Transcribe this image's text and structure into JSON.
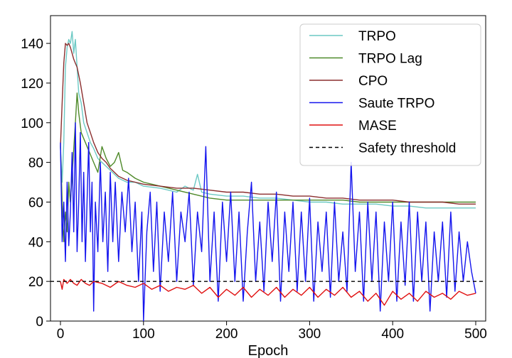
{
  "chart_data": {
    "type": "line",
    "title": "",
    "xlabel": "Epoch",
    "ylabel": "",
    "xlim": [
      -12,
      512
    ],
    "ylim": [
      0,
      154
    ],
    "xticks": [
      0,
      100,
      200,
      300,
      400,
      500
    ],
    "yticks": [
      0,
      20,
      40,
      60,
      80,
      100,
      120,
      140
    ],
    "grid": false,
    "legend_position": "top-right",
    "series": [
      {
        "name": "TRPO",
        "color": "#6cc9c4",
        "points": [
          [
            0,
            88
          ],
          [
            2,
            70
          ],
          [
            4,
            90
          ],
          [
            6,
            128
          ],
          [
            8,
            138
          ],
          [
            10,
            142
          ],
          [
            12,
            140
          ],
          [
            14,
            146
          ],
          [
            16,
            135
          ],
          [
            18,
            142
          ],
          [
            20,
            128
          ],
          [
            22,
            115
          ],
          [
            25,
            110
          ],
          [
            28,
            100
          ],
          [
            32,
            95
          ],
          [
            36,
            90
          ],
          [
            40,
            87
          ],
          [
            45,
            82
          ],
          [
            50,
            80
          ],
          [
            60,
            76
          ],
          [
            70,
            72
          ],
          [
            80,
            70
          ],
          [
            90,
            70
          ],
          [
            100,
            68
          ],
          [
            120,
            67
          ],
          [
            140,
            65
          ],
          [
            150,
            68
          ],
          [
            160,
            66
          ],
          [
            165,
            74
          ],
          [
            170,
            65
          ],
          [
            180,
            64
          ],
          [
            200,
            63
          ],
          [
            220,
            63
          ],
          [
            240,
            62
          ],
          [
            260,
            62
          ],
          [
            280,
            61
          ],
          [
            300,
            60
          ],
          [
            320,
            60
          ],
          [
            340,
            59
          ],
          [
            360,
            59
          ],
          [
            380,
            59
          ],
          [
            400,
            58
          ],
          [
            420,
            58
          ],
          [
            440,
            57
          ],
          [
            460,
            57
          ],
          [
            480,
            57
          ],
          [
            500,
            57
          ]
        ]
      },
      {
        "name": "TRPO Lag",
        "color": "#4f8a2a",
        "points": [
          [
            0,
            88
          ],
          [
            2,
            60
          ],
          [
            4,
            40
          ],
          [
            6,
            55
          ],
          [
            8,
            45
          ],
          [
            10,
            70
          ],
          [
            12,
            60
          ],
          [
            15,
            80
          ],
          [
            18,
            100
          ],
          [
            20,
            115
          ],
          [
            22,
            105
          ],
          [
            25,
            95
          ],
          [
            30,
            90
          ],
          [
            35,
            85
          ],
          [
            40,
            80
          ],
          [
            45,
            75
          ],
          [
            50,
            88
          ],
          [
            55,
            82
          ],
          [
            60,
            78
          ],
          [
            65,
            80
          ],
          [
            70,
            85
          ],
          [
            75,
            76
          ],
          [
            80,
            75
          ],
          [
            90,
            72
          ],
          [
            100,
            70
          ],
          [
            120,
            68
          ],
          [
            140,
            66
          ],
          [
            160,
            64
          ],
          [
            180,
            62
          ],
          [
            200,
            61
          ],
          [
            220,
            61
          ],
          [
            240,
            61
          ],
          [
            260,
            61
          ],
          [
            280,
            61
          ],
          [
            300,
            61
          ],
          [
            320,
            61
          ],
          [
            340,
            61
          ],
          [
            360,
            60
          ],
          [
            380,
            60
          ],
          [
            400,
            60
          ],
          [
            420,
            60
          ],
          [
            440,
            60
          ],
          [
            460,
            60
          ],
          [
            480,
            60
          ],
          [
            500,
            60
          ]
        ]
      },
      {
        "name": "CPO",
        "color": "#8b2e2e",
        "points": [
          [
            0,
            88
          ],
          [
            2,
            110
          ],
          [
            4,
            130
          ],
          [
            6,
            140
          ],
          [
            8,
            139
          ],
          [
            10,
            140
          ],
          [
            12,
            138
          ],
          [
            14,
            135
          ],
          [
            16,
            132
          ],
          [
            18,
            130
          ],
          [
            20,
            128
          ],
          [
            24,
            120
          ],
          [
            28,
            110
          ],
          [
            32,
            100
          ],
          [
            36,
            95
          ],
          [
            40,
            90
          ],
          [
            45,
            85
          ],
          [
            50,
            82
          ],
          [
            55,
            80
          ],
          [
            60,
            77
          ],
          [
            70,
            73
          ],
          [
            80,
            71
          ],
          [
            90,
            70
          ],
          [
            100,
            69
          ],
          [
            120,
            68
          ],
          [
            140,
            67
          ],
          [
            160,
            67
          ],
          [
            180,
            66
          ],
          [
            200,
            65
          ],
          [
            220,
            65
          ],
          [
            240,
            64
          ],
          [
            260,
            64
          ],
          [
            280,
            63
          ],
          [
            300,
            63
          ],
          [
            320,
            62
          ],
          [
            340,
            62
          ],
          [
            360,
            61
          ],
          [
            380,
            61
          ],
          [
            400,
            61
          ],
          [
            420,
            60
          ],
          [
            440,
            60
          ],
          [
            460,
            60
          ],
          [
            480,
            59
          ],
          [
            500,
            59
          ]
        ]
      },
      {
        "name": "Saute TRPO",
        "color": "#1515ee",
        "points": [
          [
            0,
            90
          ],
          [
            2,
            40
          ],
          [
            4,
            60
          ],
          [
            6,
            30
          ],
          [
            8,
            70
          ],
          [
            10,
            38
          ],
          [
            12,
            55
          ],
          [
            14,
            85
          ],
          [
            16,
            45
          ],
          [
            18,
            100
          ],
          [
            20,
            35
          ],
          [
            22,
            60
          ],
          [
            24,
            95
          ],
          [
            26,
            40
          ],
          [
            28,
            75
          ],
          [
            30,
            30
          ],
          [
            32,
            60
          ],
          [
            34,
            90
          ],
          [
            36,
            45
          ],
          [
            38,
            70
          ],
          [
            40,
            5
          ],
          [
            42,
            60
          ],
          [
            45,
            35
          ],
          [
            48,
            80
          ],
          [
            51,
            40
          ],
          [
            54,
            65
          ],
          [
            57,
            25
          ],
          [
            60,
            75
          ],
          [
            63,
            40
          ],
          [
            66,
            70
          ],
          [
            70,
            30
          ],
          [
            74,
            65
          ],
          [
            78,
            45
          ],
          [
            82,
            72
          ],
          [
            86,
            35
          ],
          [
            90,
            60
          ],
          [
            94,
            20
          ],
          [
            98,
            55
          ],
          [
            100,
            0
          ],
          [
            104,
            45
          ],
          [
            108,
            65
          ],
          [
            112,
            25
          ],
          [
            116,
            60
          ],
          [
            120,
            15
          ],
          [
            125,
            55
          ],
          [
            130,
            30
          ],
          [
            135,
            65
          ],
          [
            140,
            20
          ],
          [
            145,
            55
          ],
          [
            150,
            40
          ],
          [
            155,
            65
          ],
          [
            160,
            18
          ],
          [
            165,
            55
          ],
          [
            170,
            35
          ],
          [
            175,
            88
          ],
          [
            180,
            20
          ],
          [
            185,
            55
          ],
          [
            190,
            10
          ],
          [
            195,
            60
          ],
          [
            200,
            30
          ],
          [
            205,
            65
          ],
          [
            210,
            20
          ],
          [
            215,
            55
          ],
          [
            220,
            10
          ],
          [
            225,
            45
          ],
          [
            230,
            70
          ],
          [
            235,
            20
          ],
          [
            240,
            50
          ],
          [
            245,
            15
          ],
          [
            250,
            60
          ],
          [
            255,
            30
          ],
          [
            260,
            65
          ],
          [
            265,
            10
          ],
          [
            270,
            55
          ],
          [
            275,
            25
          ],
          [
            280,
            60
          ],
          [
            285,
            15
          ],
          [
            290,
            55
          ],
          [
            295,
            20
          ],
          [
            300,
            62
          ],
          [
            305,
            10
          ],
          [
            310,
            50
          ],
          [
            315,
            25
          ],
          [
            320,
            55
          ],
          [
            325,
            12
          ],
          [
            330,
            60
          ],
          [
            335,
            20
          ],
          [
            340,
            45
          ],
          [
            345,
            15
          ],
          [
            350,
            80
          ],
          [
            355,
            25
          ],
          [
            360,
            55
          ],
          [
            365,
            10
          ],
          [
            370,
            60
          ],
          [
            375,
            20
          ],
          [
            380,
            55
          ],
          [
            385,
            5
          ],
          [
            390,
            50
          ],
          [
            395,
            20
          ],
          [
            400,
            60
          ],
          [
            405,
            10
          ],
          [
            410,
            50
          ],
          [
            415,
            18
          ],
          [
            420,
            60
          ],
          [
            425,
            10
          ],
          [
            430,
            55
          ],
          [
            435,
            20
          ],
          [
            440,
            50
          ],
          [
            445,
            5
          ],
          [
            450,
            45
          ],
          [
            455,
            20
          ],
          [
            460,
            50
          ],
          [
            465,
            12
          ],
          [
            470,
            55
          ],
          [
            475,
            15
          ],
          [
            480,
            45
          ],
          [
            485,
            20
          ],
          [
            490,
            40
          ],
          [
            495,
            25
          ],
          [
            500,
            14
          ]
        ]
      },
      {
        "name": "MASE",
        "color": "#e01010",
        "points": [
          [
            0,
            20
          ],
          [
            2,
            16
          ],
          [
            4,
            21
          ],
          [
            8,
            19
          ],
          [
            12,
            21
          ],
          [
            16,
            19
          ],
          [
            20,
            18
          ],
          [
            25,
            21
          ],
          [
            30,
            19
          ],
          [
            35,
            18
          ],
          [
            40,
            20
          ],
          [
            50,
            19
          ],
          [
            60,
            17
          ],
          [
            70,
            20
          ],
          [
            80,
            18
          ],
          [
            90,
            17
          ],
          [
            100,
            19
          ],
          [
            110,
            16
          ],
          [
            120,
            18
          ],
          [
            130,
            15
          ],
          [
            140,
            17
          ],
          [
            150,
            16
          ],
          [
            160,
            18
          ],
          [
            170,
            14
          ],
          [
            180,
            17
          ],
          [
            190,
            12
          ],
          [
            200,
            16
          ],
          [
            210,
            13
          ],
          [
            220,
            17
          ],
          [
            230,
            12
          ],
          [
            240,
            16
          ],
          [
            250,
            13
          ],
          [
            260,
            17
          ],
          [
            270,
            12
          ],
          [
            280,
            16
          ],
          [
            290,
            13
          ],
          [
            300,
            17
          ],
          [
            310,
            12
          ],
          [
            320,
            16
          ],
          [
            330,
            13
          ],
          [
            340,
            17
          ],
          [
            350,
            12
          ],
          [
            360,
            15
          ],
          [
            370,
            10
          ],
          [
            380,
            14
          ],
          [
            390,
            8
          ],
          [
            400,
            15
          ],
          [
            410,
            11
          ],
          [
            420,
            14
          ],
          [
            430,
            10
          ],
          [
            440,
            15
          ],
          [
            450,
            12
          ],
          [
            460,
            14
          ],
          [
            470,
            11
          ],
          [
            480,
            15
          ],
          [
            490,
            13
          ],
          [
            500,
            14
          ]
        ]
      },
      {
        "name": "Safety threshold",
        "color": "#000000",
        "dashed": true,
        "points": [
          [
            -12,
            20
          ],
          [
            512,
            20
          ]
        ]
      }
    ]
  }
}
